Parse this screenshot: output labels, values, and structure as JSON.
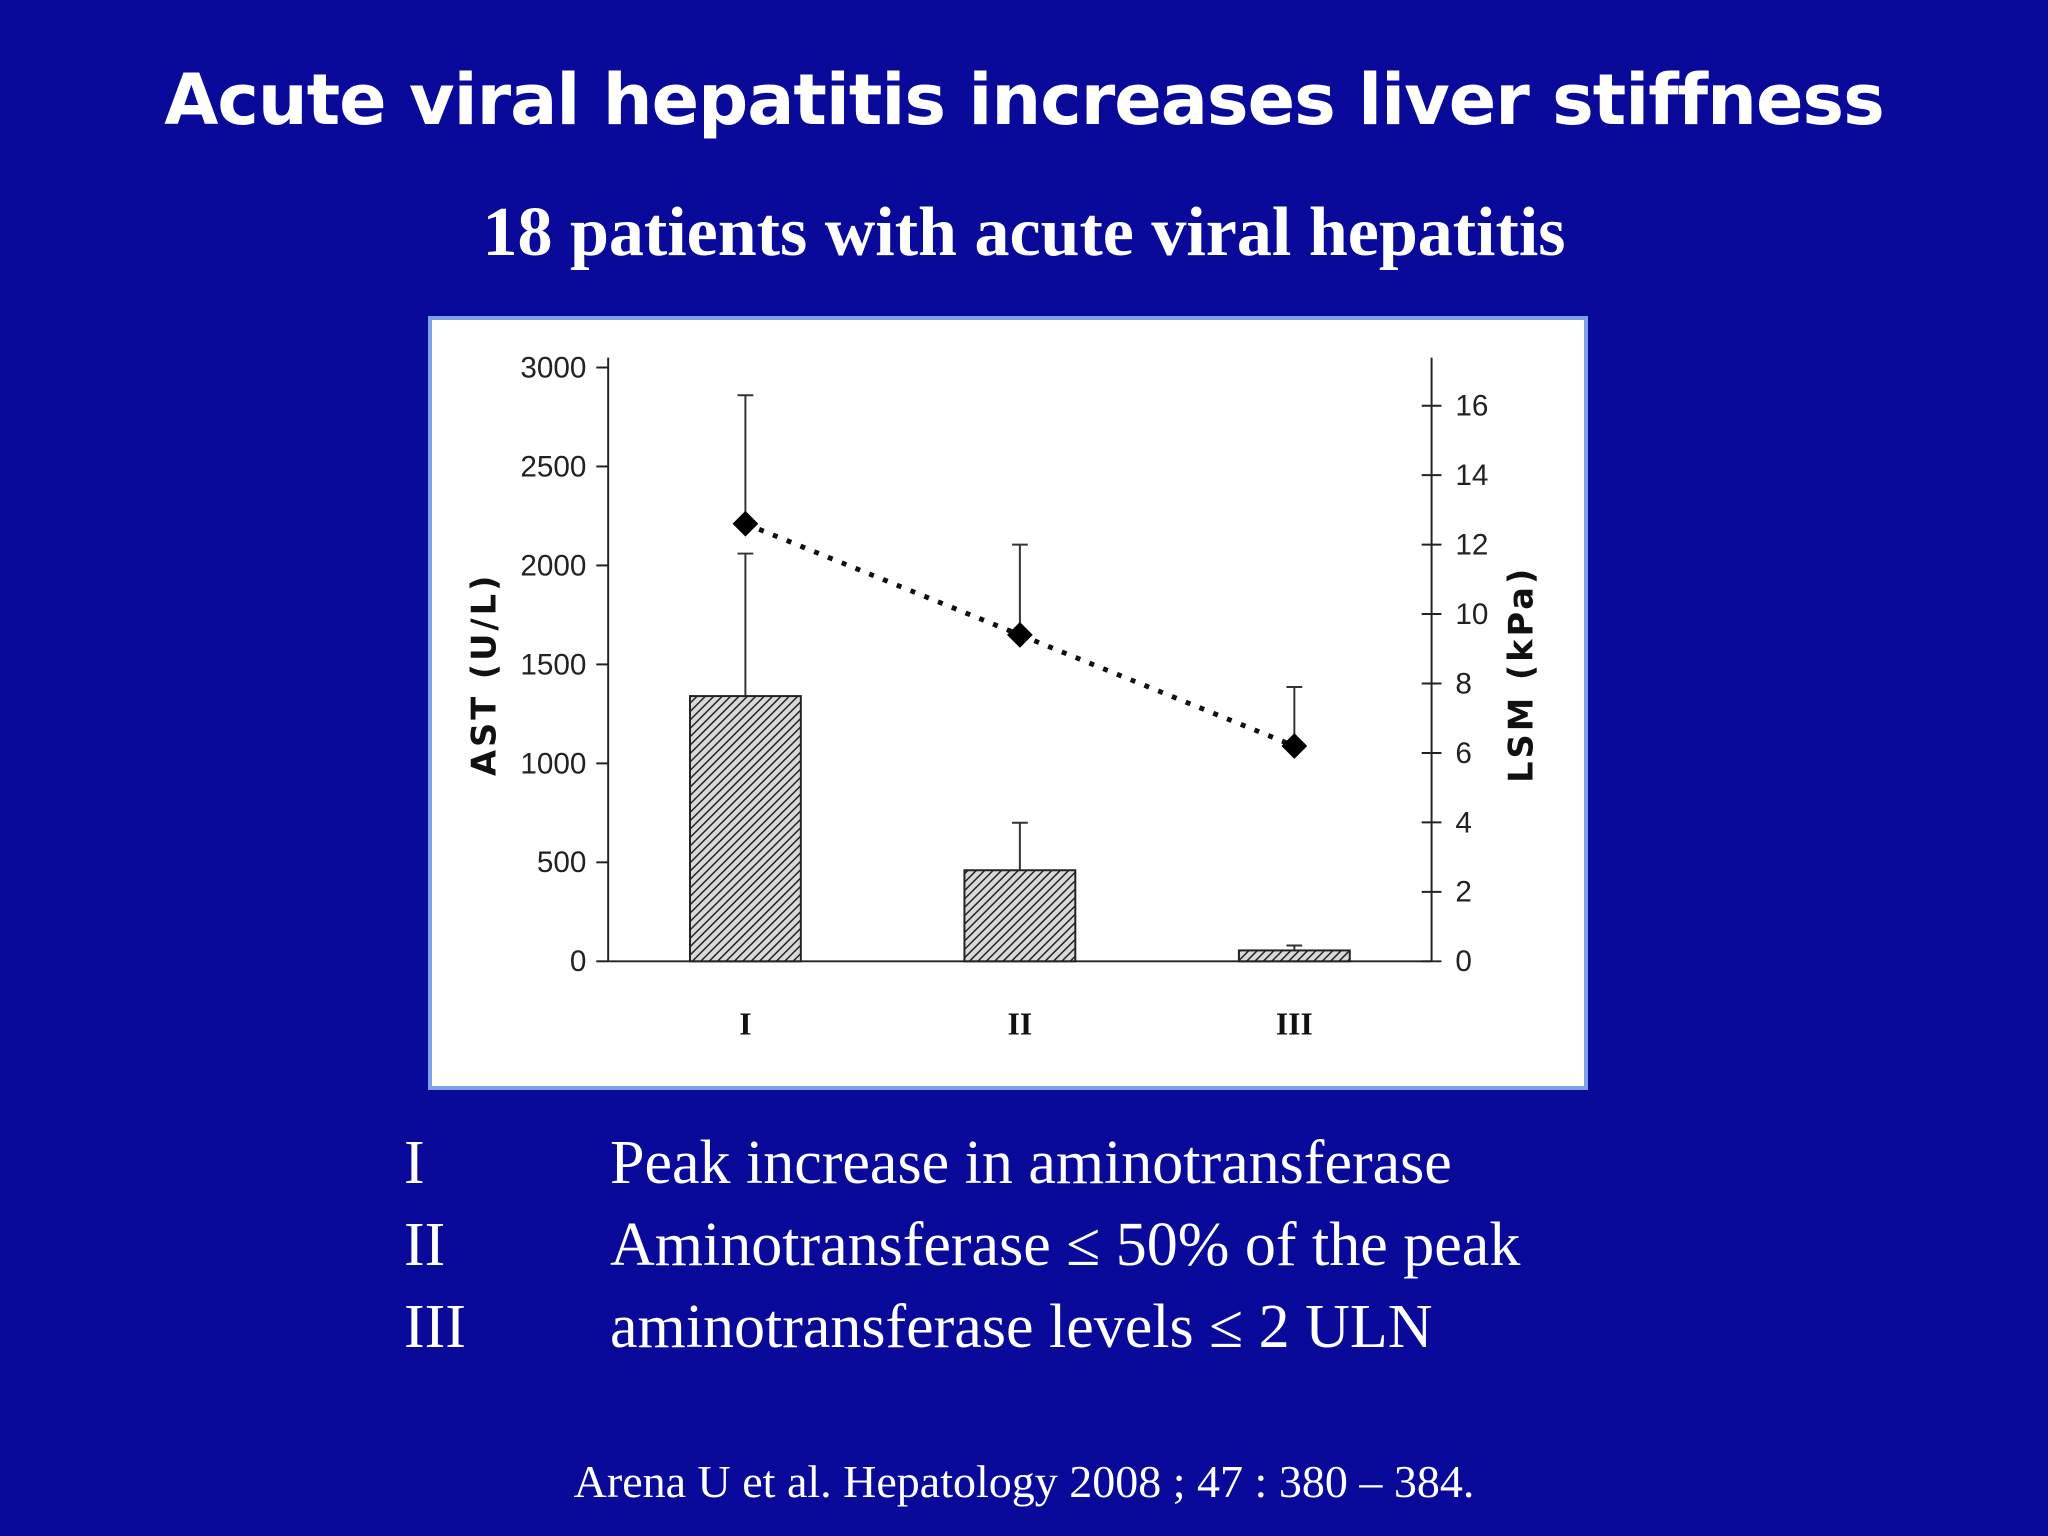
{
  "slide": {
    "title": "Acute viral hepatitis increases liver stiffness",
    "subtitle": "18 patients with acute viral hepatitis",
    "citation": "Arena U et al. Hepatology 2008 ; 47 : 380 – 384."
  },
  "legend": [
    {
      "code": "I",
      "text": "Peak increase in aminotransferase"
    },
    {
      "code": "II",
      "text": "Aminotransferase ≤ 50% of the peak"
    },
    {
      "code": "III",
      "text": "aminotransferase levels  ≤ 2 ULN"
    }
  ],
  "colors": {
    "background": "#0a0a9a",
    "panel_border": "#7f9fe6",
    "bar_hatch": "#222222"
  },
  "chart_data": {
    "type": "bar",
    "categories": [
      "I",
      "II",
      "III"
    ],
    "ylabel": "AST (U/L)",
    "y2label": "LSM (kPa)",
    "ylim": [
      0,
      3000
    ],
    "y2lim": [
      0,
      17
    ],
    "y_ticks": [
      "0",
      "500",
      "1000",
      "1500",
      "2000",
      "2500",
      "3000"
    ],
    "y2_ticks": [
      "0",
      "2",
      "4",
      "6",
      "8",
      "10",
      "12",
      "14",
      "16"
    ],
    "grid": false,
    "series": [
      {
        "type": "bar",
        "axis": "left",
        "style": "hatched",
        "values": [
          1340,
          460,
          55
        ],
        "error_upper": [
          2060,
          700,
          80
        ]
      },
      {
        "type": "line",
        "axis": "right",
        "style": "dotted-diamond",
        "values": [
          12.6,
          9.4,
          6.2
        ],
        "error_upper": [
          16.3,
          12,
          7.9
        ]
      }
    ]
  }
}
